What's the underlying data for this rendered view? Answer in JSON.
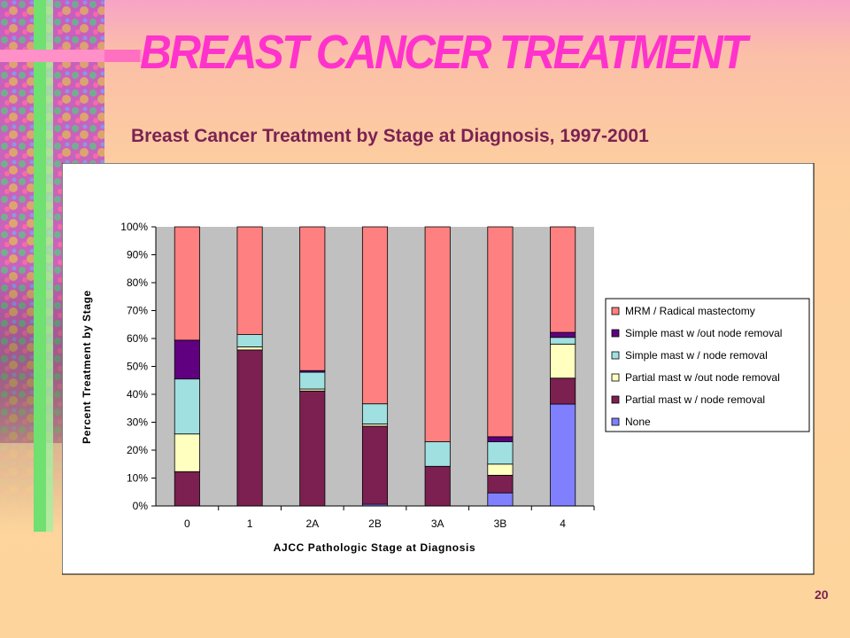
{
  "slide": {
    "title": "BREAST CANCER TREATMENT",
    "page_number": "20"
  },
  "colors": {
    "title": "#ff33cc",
    "subtitle": "#7b2252",
    "plot_background": "#c0c0c0"
  },
  "chart_data": {
    "type": "bar",
    "stacked": true,
    "title": "Breast Cancer Treatment by Stage at Diagnosis, 1997-2001",
    "xlabel": "AJCC Pathologic Stage at Diagnosis",
    "ylabel": "Percent Treatment by Stage",
    "ylim": [
      0,
      100
    ],
    "yticks": [
      "0%",
      "10%",
      "20%",
      "30%",
      "40%",
      "50%",
      "60%",
      "70%",
      "80%",
      "90%",
      "100%"
    ],
    "categories": [
      "0",
      "1",
      "2A",
      "2B",
      "3A",
      "3B",
      "4"
    ],
    "legend_position": "right",
    "grid": false,
    "series": [
      {
        "name": "None",
        "color": "#8080ff",
        "values": [
          0,
          0,
          0,
          0.6,
          0,
          4.7,
          36.5
        ]
      },
      {
        "name": "Partial mast w / node removal",
        "color": "#7b2050",
        "values": [
          12.3,
          55.9,
          41.2,
          28.0,
          14.2,
          6.3,
          9.3
        ]
      },
      {
        "name": "Partial mast w /out node removal",
        "color": "#ffffc0",
        "values": [
          13.5,
          1.1,
          0.7,
          0.8,
          0,
          4.0,
          12.2
        ]
      },
      {
        "name": "Simple mast w / node removal",
        "color": "#a0e0e0",
        "values": [
          19.7,
          4.4,
          6.0,
          7.2,
          8.8,
          8.0,
          2.4
        ]
      },
      {
        "name": "Simple mast w /out node removal",
        "color": "#600080",
        "values": [
          13.9,
          0,
          0.6,
          0,
          0,
          1.8,
          1.8
        ]
      },
      {
        "name": "MRM / Radical mastectomy",
        "color": "#ff8080",
        "values": [
          40.6,
          38.6,
          51.5,
          63.4,
          77.0,
          75.2,
          37.8
        ]
      }
    ]
  }
}
